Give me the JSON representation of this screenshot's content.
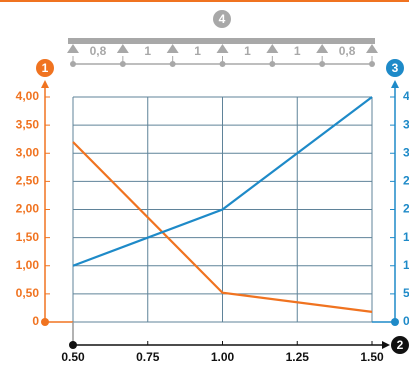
{
  "chart_data": {
    "type": "line",
    "beam_badge": "4",
    "spans": [
      "0,8",
      "1",
      "1",
      "1",
      "1",
      "0,8"
    ],
    "left_badge": "1",
    "right_badge": "3",
    "x_badge": "2",
    "x": [
      0.5,
      1.0,
      1.5
    ],
    "xlim": [
      0.5,
      1.5
    ],
    "xticks": [
      {
        "value": 0.5,
        "label": "0.50"
      },
      {
        "value": 0.75,
        "label": "0.75"
      },
      {
        "value": 1.0,
        "label": "1.00"
      },
      {
        "value": 1.25,
        "label": "1.25"
      },
      {
        "value": 1.5,
        "label": "1.50"
      }
    ],
    "ylim": [
      0,
      4
    ],
    "yticks": [
      0,
      {
        "value": 0.5,
        "label": "0,50"
      },
      {
        "value": 1,
        "label": "1,00"
      },
      {
        "value": 1.5,
        "label": "1,50"
      },
      {
        "value": 2,
        "label": "2,00"
      },
      {
        "value": 2.5,
        "label": "2,50"
      },
      {
        "value": 3,
        "label": "3,00"
      },
      {
        "value": 3.5,
        "label": "3,50"
      },
      {
        "value": 4,
        "label": "4,00"
      }
    ],
    "y2lim": [
      0,
      4
    ],
    "y2ticks": [
      0,
      {
        "value": 0.5,
        "label": "5"
      },
      {
        "value": 1,
        "label": "1"
      },
      {
        "value": 1.5,
        "label": "1"
      },
      {
        "value": 2,
        "label": "2"
      },
      {
        "value": 2.5,
        "label": "2"
      },
      {
        "value": 3,
        "label": "3"
      },
      {
        "value": 3.5,
        "label": "3"
      },
      {
        "value": 4,
        "label": "4"
      }
    ],
    "grid": true,
    "series": [
      {
        "color": "#f07320",
        "values": [
          3.2,
          0.52,
          0.18
        ]
      },
      {
        "color": "#1e8ac8",
        "axis": "y2",
        "values": [
          1.0,
          2.0,
          4.0
        ]
      }
    ]
  }
}
